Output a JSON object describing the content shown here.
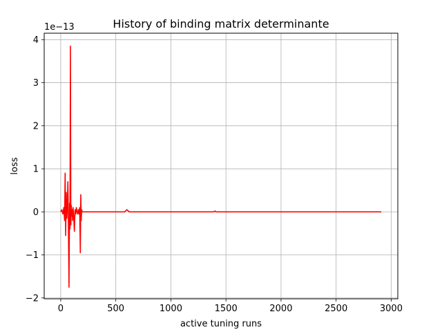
{
  "chart_data": {
    "type": "line",
    "title": "History of binding matrix determinante",
    "xlabel": "active tuning runs",
    "ylabel": "loss",
    "y_offset_label": "1e−13",
    "xlim": [
      -150,
      3060
    ],
    "ylim": [
      -2.02,
      4.15
    ],
    "x_ticks": [
      0,
      500,
      1000,
      1500,
      2000,
      2500,
      3000
    ],
    "x_tick_labels": [
      "0",
      "500",
      "1000",
      "1500",
      "2000",
      "2500",
      "3000"
    ],
    "y_ticks": [
      -2,
      -1,
      0,
      1,
      2,
      3,
      4
    ],
    "y_tick_labels": [
      "−2",
      "−1",
      "0",
      "1",
      "2",
      "3",
      "4"
    ],
    "grid": true,
    "line_color": "#ff0000",
    "series": [
      {
        "x": [
          0,
          10,
          20,
          28,
          35,
          40,
          45,
          50,
          55,
          60,
          65,
          70,
          75,
          80,
          84,
          88,
          92,
          96,
          100,
          104,
          108,
          112,
          118,
          124,
          130,
          136,
          142,
          148,
          154,
          160,
          166,
          172,
          178,
          182,
          186,
          190,
          195,
          200,
          300,
          400,
          500,
          580,
          600,
          610,
          620,
          650,
          700,
          800,
          1000,
          1200,
          1390,
          1400,
          1410,
          1600,
          2000,
          2500,
          2910
        ],
        "y": [
          0,
          0.05,
          -0.05,
          0.1,
          -0.2,
          0.9,
          -0.55,
          0.45,
          -0.15,
          0.1,
          0.7,
          -0.3,
          -1.75,
          0.2,
          -0.4,
          3.85,
          -0.3,
          0.15,
          -0.1,
          0.05,
          -0.2,
          0.1,
          -0.1,
          -0.45,
          0.05,
          -0.05,
          0.1,
          0,
          -0.05,
          0.05,
          -0.05,
          0.1,
          -0.95,
          0.4,
          -0.2,
          0.05,
          0,
          0,
          0,
          0,
          0,
          0,
          0.05,
          0.03,
          0,
          0,
          0,
          0,
          0,
          0,
          0,
          0.02,
          0,
          0,
          0,
          0,
          0
        ]
      }
    ]
  }
}
